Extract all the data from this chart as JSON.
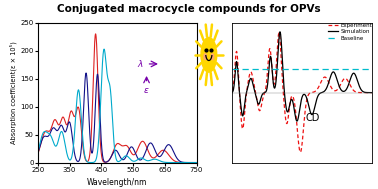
{
  "title": "Conjugated macrocycle compounds for OPVs",
  "title_fontsize": 7.5,
  "left_xlabel": "Wavelength/nm",
  "left_ylabel": "Absorption coefficient(ε × 10⁵)",
  "left_xlim": [
    250,
    750
  ],
  "left_ylim": [
    0,
    250
  ],
  "left_yticks": [
    0,
    50,
    100,
    150,
    200,
    250
  ],
  "left_xticks": [
    250,
    350,
    450,
    550,
    650,
    750
  ],
  "cd_label": "CD",
  "legend_labels": [
    "Experiment",
    "Simulation",
    "Baseline"
  ],
  "exp_color": "#EE1111",
  "sim_color": "#000000",
  "base_color": "#00BBCC",
  "red_color": "#DD2222",
  "blue_color": "#111188",
  "cyan_color": "#00AACC"
}
